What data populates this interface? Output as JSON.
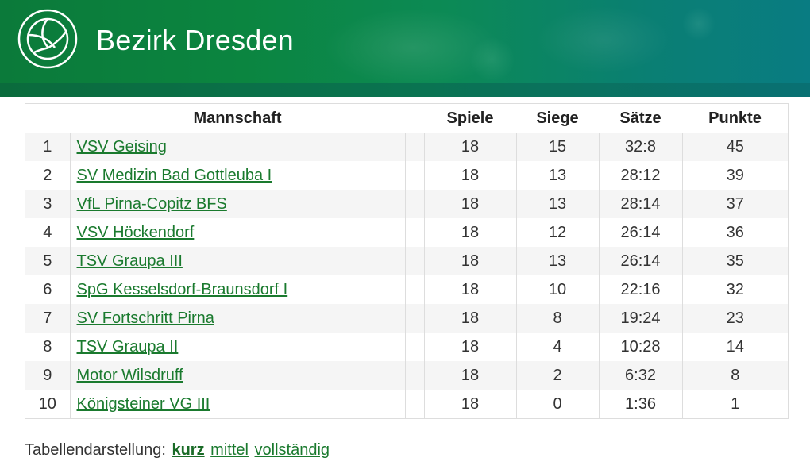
{
  "header": {
    "title": "Bezirk Dresden",
    "logo_icon": "volleyball-icon",
    "colors": {
      "green": "#0b8540",
      "teal": "#097c82"
    }
  },
  "table": {
    "columns": [
      "Mannschaft",
      "Spiele",
      "Siege",
      "Sätze",
      "Punkte"
    ],
    "rows": [
      {
        "rank": "1",
        "team": "VSV Geising",
        "games": "18",
        "wins": "15",
        "sets": "32:8",
        "points": "45"
      },
      {
        "rank": "2",
        "team": "SV Medizin Bad Gottleuba I",
        "games": "18",
        "wins": "13",
        "sets": "28:12",
        "points": "39"
      },
      {
        "rank": "3",
        "team": "VfL Pirna-Copitz BFS",
        "games": "18",
        "wins": "13",
        "sets": "28:14",
        "points": "37"
      },
      {
        "rank": "4",
        "team": "VSV Höckendorf",
        "games": "18",
        "wins": "12",
        "sets": "26:14",
        "points": "36"
      },
      {
        "rank": "5",
        "team": "TSV Graupa III",
        "games": "18",
        "wins": "13",
        "sets": "26:14",
        "points": "35"
      },
      {
        "rank": "6",
        "team": "SpG Kesselsdorf-Braunsdorf I",
        "games": "18",
        "wins": "10",
        "sets": "22:16",
        "points": "32"
      },
      {
        "rank": "7",
        "team": "SV Fortschritt Pirna",
        "games": "18",
        "wins": "8",
        "sets": "19:24",
        "points": "23"
      },
      {
        "rank": "8",
        "team": "TSV Graupa II",
        "games": "18",
        "wins": "4",
        "sets": "10:28",
        "points": "14"
      },
      {
        "rank": "9",
        "team": "Motor Wilsdruff",
        "games": "18",
        "wins": "2",
        "sets": "6:32",
        "points": "8"
      },
      {
        "rank": "10",
        "team": "Königsteiner VG III",
        "games": "18",
        "wins": "0",
        "sets": "1:36",
        "points": "1"
      }
    ]
  },
  "footer": {
    "label": "Tabellendarstellung:",
    "options": [
      "kurz",
      "mittel",
      "vollständig"
    ],
    "active": "kurz"
  }
}
